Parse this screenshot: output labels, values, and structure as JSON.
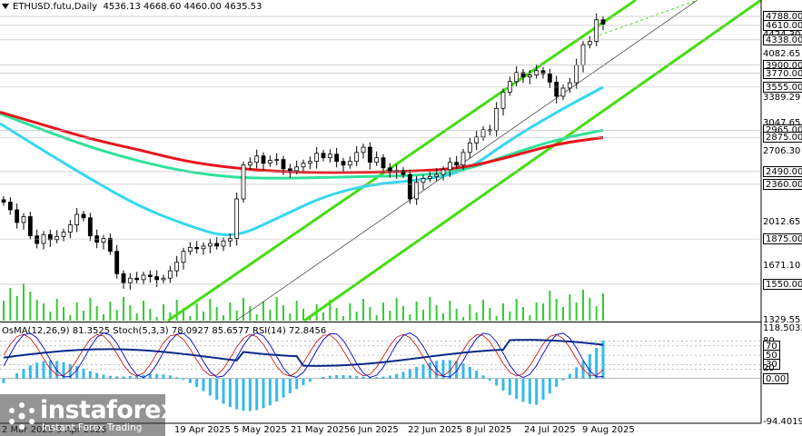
{
  "header": {
    "symbol_line": "ETHUSD.futu,Daily",
    "ohlc": "4536.13 4668.60 4460.00 4635.53"
  },
  "indicator_header": "OsMA(12,26,9) 81.3525  Stoch(5,3,3) 78.0927 85.6577  RSI(14) 72.8456",
  "watermark": {
    "brand": "instaforex",
    "tagline": "Instant Forex Trading"
  },
  "colors": {
    "bull_candle": "#008000",
    "bear_candle": "#000000",
    "ma_red": "#e8141c",
    "ma_green": "#2ee29a",
    "ma_cyan": "#33d8f0",
    "channel": "#44dd11",
    "volume": "#33cc33",
    "osma": "#33bbee",
    "stoch_main": "#0000cc",
    "stoch_signal": "#cc0000",
    "rsi": "#0a2a8a"
  },
  "chart_data": [
    {
      "type": "line",
      "title": "ETHUSD.futu,Daily",
      "x_axis_labels": [
        "2 Mar 2025",
        "3 Apr 2025",
        "19 Apr 2025",
        "5 May 2025",
        "21 May 2025",
        "6 Jun 2025",
        "22 Jun 2025",
        "8 Jul 2025",
        "24 Jul 2025",
        "9 Aug 2025"
      ],
      "y_axis_ticks": [
        "4788.00",
        "4610.00",
        "4424.30",
        "4338.00",
        "4082.65",
        "3900.00",
        "3770.00",
        "3555.00",
        "3389.29",
        "3047.65",
        "2965.00",
        "2875.00",
        "2706.30",
        "2490.00",
        "2360.00",
        "2012.65",
        "1875.00",
        "1671.10",
        "1550.00",
        "1329.55"
      ],
      "boxed_levels": [
        4788,
        4610,
        4338,
        3900,
        3770,
        3555,
        2965,
        2875,
        2490,
        2360,
        1875,
        1550
      ],
      "ylim": [
        1329.55,
        5130
      ],
      "price_close": [
        2190,
        2120,
        2010,
        2060,
        1900,
        1840,
        1910,
        1870,
        1895,
        1930,
        1990,
        2080,
        2050,
        1900,
        1850,
        1880,
        1780,
        1620,
        1560,
        1590,
        1580,
        1610,
        1600,
        1580,
        1590,
        1640,
        1700,
        1780,
        1810,
        1800,
        1820,
        1840,
        1820,
        1860,
        1880,
        2220,
        2560,
        2590,
        2660,
        2580,
        2610,
        2620,
        2520,
        2500,
        2540,
        2580,
        2600,
        2690,
        2640,
        2680,
        2600,
        2560,
        2600,
        2700,
        2760,
        2590,
        2640,
        2530,
        2490,
        2500,
        2460,
        2220,
        2380,
        2420,
        2440,
        2460,
        2510,
        2590,
        2560,
        2700,
        2810,
        2880,
        2970,
        2960,
        3250,
        3480,
        3640,
        3780,
        3710,
        3740,
        3810,
        3760,
        3630,
        3420,
        3540,
        3620,
        3900,
        4250,
        4310,
        4720,
        4635
      ],
      "ma_red": [
        3200,
        3020,
        2850,
        2730,
        2600,
        2530,
        2490,
        2480,
        2485,
        2495,
        2530,
        2650,
        2800,
        2875
      ],
      "ma_green": [
        3180,
        2950,
        2750,
        2600,
        2490,
        2430,
        2420,
        2430,
        2440,
        2450,
        2500,
        2680,
        2850,
        2965
      ],
      "ma_cyan": [
        3050,
        2700,
        2400,
        2150,
        1990,
        1875,
        2050,
        2250,
        2360,
        2400,
        2480,
        2850,
        3200,
        3555
      ],
      "channel_upper": [
        [
          100,
          2520
        ],
        [
          4788,
          4788
        ]
      ],
      "channel_lower": [
        [
          180,
          1400
        ],
        [
          4788,
          4150
        ]
      ],
      "channel_mid_dotted": [
        [
          160,
          1380
        ],
        [
          4430,
          4424
        ]
      ]
    },
    {
      "type": "line",
      "title": "OsMA(12,26,9) 81.3525  Stoch(5,3,3) 78.0927 85.6577  RSI(14) 72.8456",
      "y_axis_ticks": [
        "118.5032",
        "80",
        "70",
        "50",
        "30",
        "20",
        "-94.4019"
      ],
      "boxed_levels": [
        "70",
        "50",
        "0.00",
        "30"
      ],
      "ylim": [
        -94.4019,
        118.5032
      ],
      "values": {
        "osma": 81.3525,
        "stoch_main": 78.0927,
        "stoch_signal": 85.6577,
        "rsi": 72.8456
      }
    }
  ]
}
